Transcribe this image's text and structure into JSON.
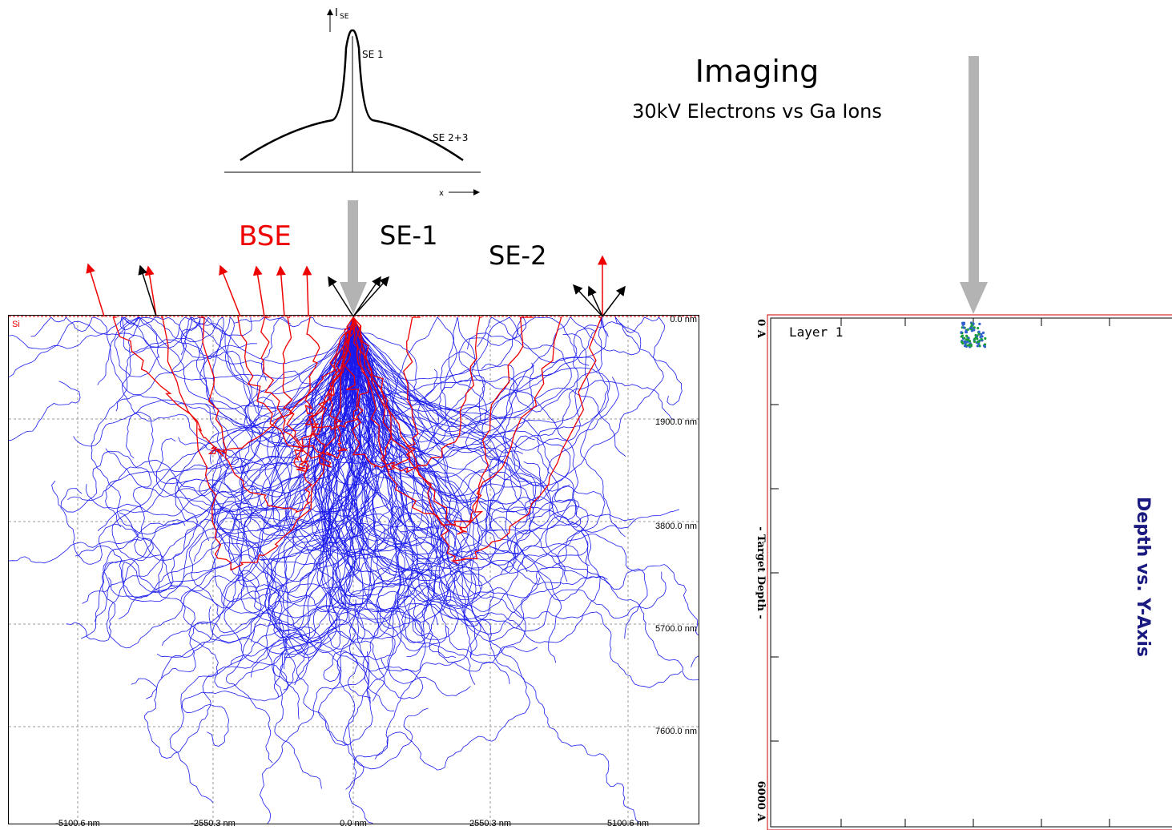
{
  "header": {
    "title": "Imaging",
    "subtitle": "30kV Electrons vs Ga Ions"
  },
  "labels": {
    "bse": "BSE",
    "se1": "SE-1",
    "se2": "SE-2"
  },
  "inset": {
    "y_label": "I",
    "y_label_sub": "SE",
    "peak_label": "SE 1",
    "tail_label": "SE 2+3",
    "x_label": "x"
  },
  "left_panel": {
    "material": "Si",
    "depth_labels": [
      "0.0 nm",
      "1900.0 nm",
      "3800.0 nm",
      "5700.0 nm",
      "7600.0 nm"
    ],
    "x_labels": [
      "-5100.6 nm",
      "-2550.3 nm",
      "0.0 nm",
      "2550.3 nm",
      "5100.6 nm"
    ]
  },
  "right_panel": {
    "layer": "Layer 1",
    "top_label": "0 A",
    "axis_label": "- Target Depth -",
    "bottom_label": "6000 A",
    "title": "Depth vs. Y-Axis"
  }
}
